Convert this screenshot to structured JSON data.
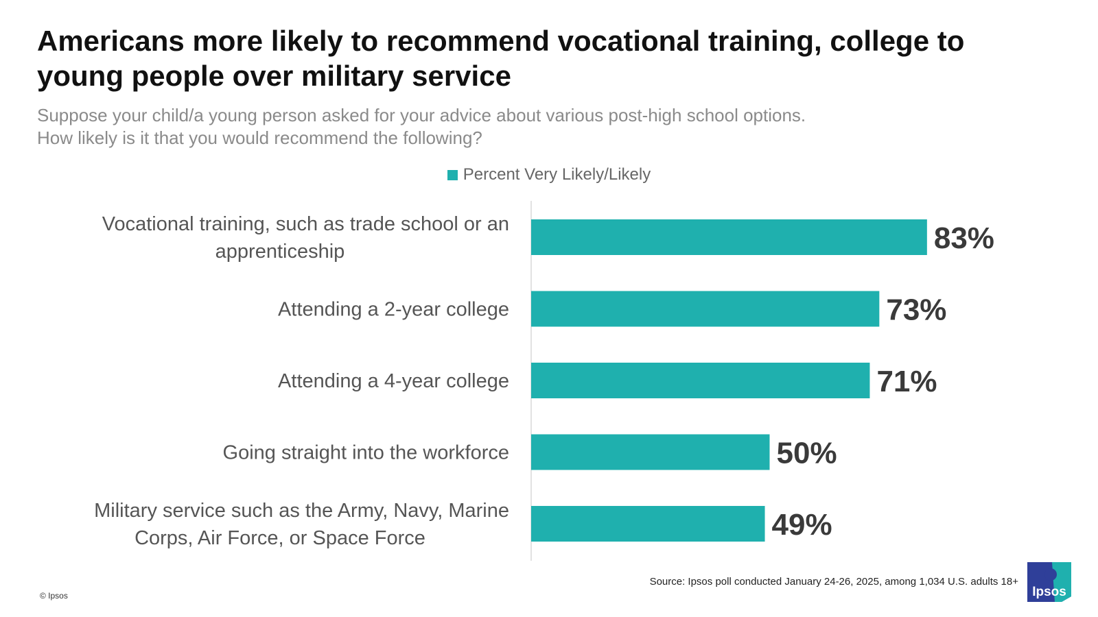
{
  "header": {
    "title": "Americans more likely to recommend vocational training, college to young people over military service",
    "subtitle_lines": [
      "Suppose your child/a young person asked for your advice about various post-high school options.",
      "How likely is it that you would recommend the following?"
    ]
  },
  "chart_data": {
    "type": "bar",
    "orientation": "horizontal",
    "title": "",
    "categories": [
      [
        "Vocational training, such as trade school or an",
        "apprenticeship"
      ],
      [
        "Attending a 2-year college"
      ],
      [
        "Attending a 4-year college"
      ],
      [
        "Going straight into the workforce"
      ],
      [
        "Military service such as the Army, Navy, Marine",
        "Corps, Air Force, or Space Force"
      ]
    ],
    "series": [
      {
        "name": "Percent Very Likely/Likely",
        "values": [
          83,
          73,
          71,
          50,
          49
        ]
      }
    ],
    "value_labels": [
      "83%",
      "73%",
      "71%",
      "50%",
      "49%"
    ],
    "xlim": [
      0,
      100
    ],
    "grid": false,
    "legend_position": "top-center",
    "bar_color": "#1fb0ae"
  },
  "footer": {
    "source": "Source: Ipsos poll conducted January 24-26, 2025, among 1,034 U.S. adults 18+",
    "copyright": "© Ipsos",
    "logo_text": "Ipsos"
  },
  "colors": {
    "accent": "#1fb0ae",
    "logo_blue": "#2f3f99",
    "logo_teal": "#1fb0ae"
  }
}
